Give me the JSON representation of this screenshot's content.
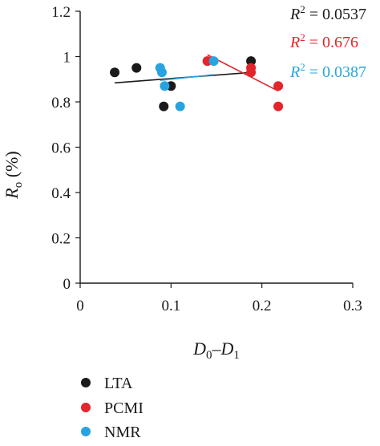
{
  "chart_data": {
    "type": "scatter",
    "xlim": [
      0,
      0.3
    ],
    "ylim": [
      0,
      1.2
    ],
    "x_ticks": [
      "0",
      "0.1",
      "0.2",
      "0.3"
    ],
    "y_ticks": [
      "0",
      "0.2",
      "0.4",
      "0.6",
      "0.8",
      "1",
      "1.2"
    ],
    "xlabel": {
      "main1": "D",
      "sub1": "0",
      "dash": "–",
      "main2": "D",
      "sub2": "1"
    },
    "ylabel": {
      "main": "R",
      "sub": "o",
      "unit": " (%)"
    },
    "grid": false,
    "legend_position": "bottom-left",
    "series": [
      {
        "name": "LTA",
        "color": "#1a1a1a",
        "points": [
          [
            0.038,
            0.93
          ],
          [
            0.062,
            0.95
          ],
          [
            0.092,
            0.78
          ],
          [
            0.1,
            0.87
          ],
          [
            0.188,
            0.98
          ]
        ],
        "trendline": [
          [
            0.038,
            0.884
          ],
          [
            0.188,
            0.93
          ]
        ],
        "r2_label": "R",
        "r2_sup": "2",
        "r2_value": " = 0.0537"
      },
      {
        "name": "PCMI",
        "color": "#e3262b",
        "points": [
          [
            0.14,
            0.98
          ],
          [
            0.188,
            0.95
          ],
          [
            0.188,
            0.93
          ],
          [
            0.218,
            0.87
          ],
          [
            0.218,
            0.78
          ]
        ],
        "trendline": [
          [
            0.14,
            1.008
          ],
          [
            0.218,
            0.848
          ]
        ],
        "r2_label": "R",
        "r2_sup": "2",
        "r2_value": " = 0.676"
      },
      {
        "name": "NMR",
        "color": "#29a3e0",
        "points": [
          [
            0.088,
            0.95
          ],
          [
            0.09,
            0.93
          ],
          [
            0.093,
            0.87
          ],
          [
            0.11,
            0.78
          ],
          [
            0.147,
            0.98
          ]
        ],
        "trendline": [
          [
            0.088,
            0.895
          ],
          [
            0.147,
            0.92
          ]
        ],
        "r2_label": "R",
        "r2_sup": "2",
        "r2_value": " = 0.0387"
      }
    ]
  }
}
